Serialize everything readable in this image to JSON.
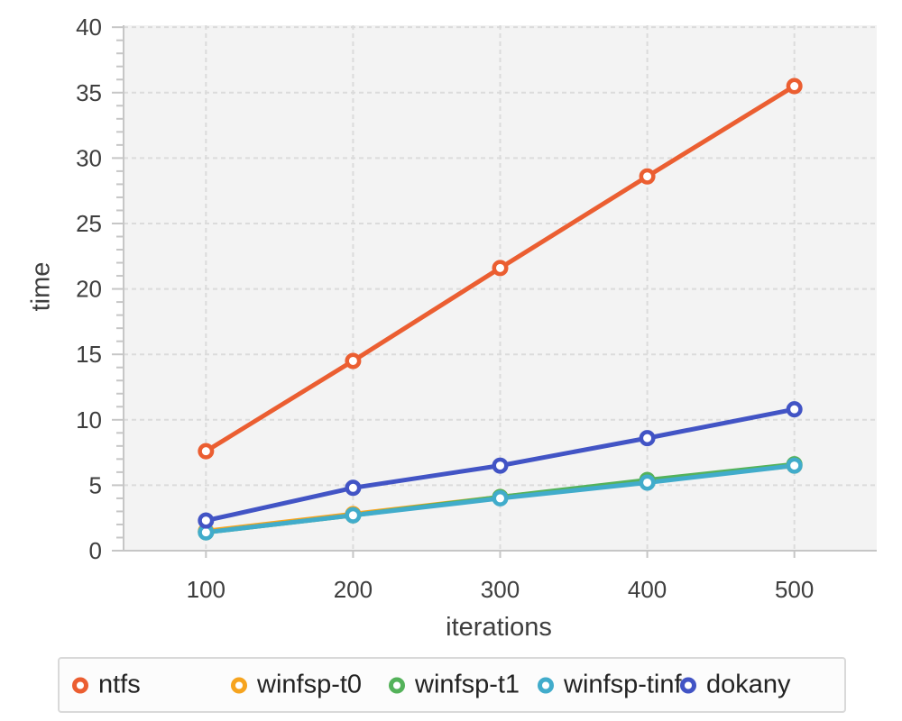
{
  "colors": {
    "plot_bg": "#f3f3f3",
    "grid": "#dbdbdb",
    "axis": "#c6c6c6",
    "tick": "#c6c6c6",
    "tick_label": "#3e3e3e",
    "axis_title": "#3e3e3e",
    "legend_border": "#d9d9d9",
    "marker_fill": "#ffffff"
  },
  "chart_data": {
    "type": "line",
    "title": "",
    "xlabel": "iterations",
    "ylabel": "time",
    "x": [
      100,
      200,
      300,
      400,
      500
    ],
    "series": [
      {
        "name": "ntfs",
        "color": "#EB5E31",
        "values": [
          7.6,
          14.5,
          21.6,
          28.6,
          35.5
        ]
      },
      {
        "name": "winfsp-t0",
        "color": "#F6A41F",
        "values": [
          1.5,
          2.8,
          4.1,
          5.3,
          6.5
        ]
      },
      {
        "name": "winfsp-t1",
        "color": "#54B25A",
        "values": [
          1.4,
          2.7,
          4.1,
          5.4,
          6.6
        ]
      },
      {
        "name": "winfsp-tinf",
        "color": "#41ACCB",
        "values": [
          1.4,
          2.7,
          4.0,
          5.2,
          6.5
        ]
      },
      {
        "name": "dokany",
        "color": "#4254C5",
        "values": [
          2.3,
          4.8,
          6.5,
          8.6,
          10.8
        ]
      }
    ],
    "x_ticks": [
      100,
      200,
      300,
      400,
      500
    ],
    "y_ticks": [
      0,
      5,
      10,
      15,
      20,
      25,
      30,
      35,
      40
    ],
    "y_minor_step": 1,
    "xlim": [
      44,
      556
    ],
    "ylim": [
      0,
      40.15
    ],
    "grid": true,
    "grid_style": "dashed",
    "marker": "circle-open",
    "legend_position": "bottom"
  }
}
